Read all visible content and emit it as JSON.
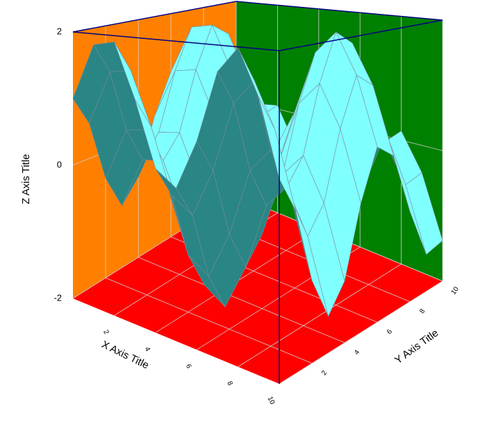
{
  "chart_data": {
    "type": "surface",
    "xlabel": "X Axis Title",
    "ylabel": "Y Axis Title",
    "zlabel": "Z Axis Title",
    "x": [
      0,
      1,
      2,
      3,
      4,
      5,
      6,
      7,
      8,
      9,
      10
    ],
    "y": [
      0,
      1,
      2,
      3,
      4,
      5,
      6,
      7,
      8,
      9,
      10
    ],
    "z": [
      [
        1,
        1.84,
        1.91,
        1.14,
        0.24,
        0.04,
        0.72,
        1.66,
        1.99,
        1.41,
        0.46
      ],
      [
        0.54,
        1.38,
        1.45,
        0.68,
        -0.22,
        -0.42,
        0.26,
        1.2,
        1.53,
        0.95,
        0
      ],
      [
        -0.42,
        0.42,
        0.49,
        -0.28,
        -1.18,
        -1.38,
        -0.7,
        0.24,
        0.57,
        -0.01,
        -0.96
      ],
      [
        -0.99,
        -0.15,
        -0.08,
        -0.85,
        -1.75,
        -1.95,
        -1.27,
        -0.33,
        0,
        -0.58,
        -1.53
      ],
      [
        -0.65,
        0.19,
        0.26,
        -0.51,
        -1.41,
        -1.61,
        -0.93,
        0.01,
        0.34,
        -0.24,
        -1.19
      ],
      [
        0.28,
        1.12,
        1.19,
        0.42,
        -0.48,
        -0.68,
        0,
        0.94,
        1.27,
        0.69,
        -0.26
      ],
      [
        0.96,
        1.8,
        1.87,
        1.1,
        0.2,
        0,
        0.68,
        1.62,
        1.95,
        1.37,
        0.42
      ],
      [
        0.75,
        1.59,
        1.66,
        0.89,
        -0.01,
        -0.21,
        0.47,
        1.41,
        1.74,
        1.16,
        0.21
      ],
      [
        -0.15,
        0.69,
        0.76,
        -0.01,
        -0.91,
        -1.11,
        -0.43,
        0.51,
        0.84,
        0.26,
        -0.69
      ],
      [
        -0.91,
        -0.07,
        0,
        -0.77,
        -1.67,
        -1.87,
        -1.19,
        -0.25,
        0.08,
        -0.5,
        -1.45
      ],
      [
        -0.84,
        0,
        0.07,
        -0.7,
        -1.6,
        -1.8,
        -1.12,
        -0.18,
        0.15,
        -0.43,
        -1.38
      ]
    ],
    "xlim": [
      0,
      10
    ],
    "ylim": [
      0,
      10
    ],
    "zlim": [
      -2,
      2
    ],
    "xticks": [
      2,
      4,
      6,
      8,
      10
    ],
    "yticks": [
      2,
      4,
      6,
      8,
      10
    ],
    "zticks": [
      -2,
      0,
      2
    ],
    "colors": {
      "top": "#80ffff",
      "bottom": "#2a8585",
      "mesh": "#7a8a99",
      "left_wall": "#ff8000",
      "back_wall": "#008000",
      "floor": "#ff0000",
      "frame": "#000080"
    }
  }
}
